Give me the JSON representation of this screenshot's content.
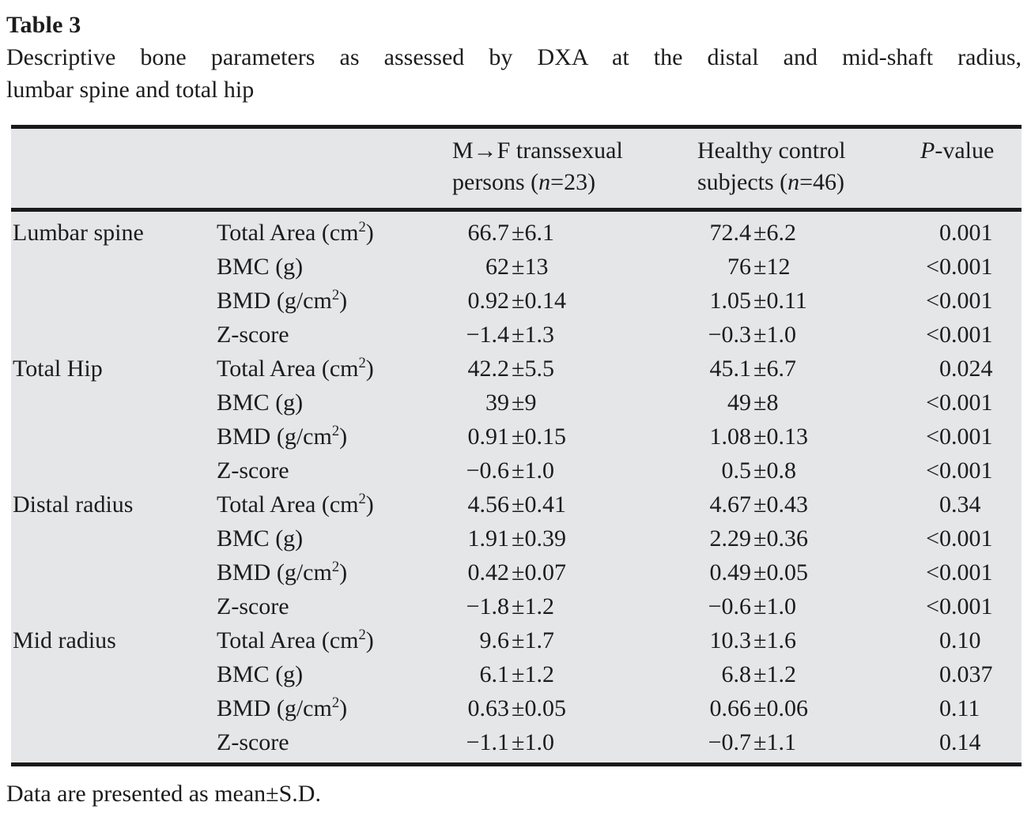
{
  "title": "Table 3",
  "caption": {
    "line1": "Descriptive bone parameters as assessed by DXA at the distal and mid-shaft radius,",
    "line2": "lumbar spine and total hip"
  },
  "footnote": "Data are presented as mean±S.D.",
  "colors": {
    "table_background": "#e5e6e7",
    "rule": "#1a1a1a",
    "text": "#1c1c1c"
  },
  "table": {
    "header": {
      "group_column": "",
      "parameter_column": "",
      "mtf_label": "M→F transsexual\npersons (*n*=23)",
      "control_label": "Healthy control\nsubjects (*n*=46)",
      "pvalue_label": "*P*-value"
    },
    "sections": [
      {
        "region": "Lumbar spine",
        "rows": [
          {
            "parameter": "Total Area (cm²)",
            "mtf": "66.7±6.1",
            "control": "72.4±6.2",
            "p": "0.001"
          },
          {
            "parameter": "BMC (g)",
            "mtf": "62±13",
            "control": "76±12",
            "p": "<0.001"
          },
          {
            "parameter": "BMD (g/cm²)",
            "mtf": "0.92±0.14",
            "control": "1.05±0.11",
            "p": "<0.001"
          },
          {
            "parameter": "Z-score",
            "mtf": "−1.4±1.3",
            "control": "−0.3±1.0",
            "p": "<0.001"
          }
        ]
      },
      {
        "region": "Total Hip",
        "rows": [
          {
            "parameter": "Total Area (cm²)",
            "mtf": "42.2±5.5",
            "control": "45.1±6.7",
            "p": "0.024"
          },
          {
            "parameter": "BMC (g)",
            "mtf": "39±9",
            "control": "49±8",
            "p": "<0.001"
          },
          {
            "parameter": "BMD (g/cm²)",
            "mtf": "0.91±0.15",
            "control": "1.08±0.13",
            "p": "<0.001"
          },
          {
            "parameter": "Z-score",
            "mtf": "−0.6±1.0",
            "control": "0.5±0.8",
            "p": "<0.001"
          }
        ]
      },
      {
        "region": "Distal radius",
        "rows": [
          {
            "parameter": "Total Area (cm²)",
            "mtf": "4.56±0.41",
            "control": "4.67±0.43",
            "p": "0.34"
          },
          {
            "parameter": "BMC (g)",
            "mtf": "1.91±0.39",
            "control": "2.29±0.36",
            "p": "<0.001"
          },
          {
            "parameter": "BMD (g/cm²)",
            "mtf": "0.42±0.07",
            "control": "0.49±0.05",
            "p": "<0.001"
          },
          {
            "parameter": "Z-score",
            "mtf": "−1.8±1.2",
            "control": "−0.6±1.0",
            "p": "<0.001"
          }
        ]
      },
      {
        "region": "Mid radius",
        "rows": [
          {
            "parameter": "Total Area (cm²)",
            "mtf": "9.6±1.7",
            "control": "10.3±1.6",
            "p": "0.10"
          },
          {
            "parameter": "BMC (g)",
            "mtf": "6.1±1.2",
            "control": "6.8±1.2",
            "p": "0.037"
          },
          {
            "parameter": "BMD (g/cm²)",
            "mtf": "0.63±0.05",
            "control": "0.66±0.06",
            "p": "0.11"
          },
          {
            "parameter": "Z-score",
            "mtf": "−1.1±1.0",
            "control": "−0.7±1.1",
            "p": "0.14"
          }
        ]
      }
    ]
  }
}
